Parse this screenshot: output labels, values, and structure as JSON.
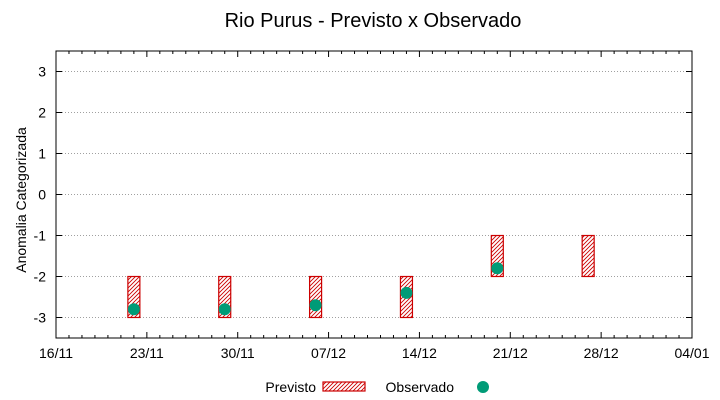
{
  "chart_data": {
    "type": "range-bar-scatter",
    "title": "Rio Purus - Previsto x Observado",
    "xlabel": "",
    "ylabel": "Anomalia Categorizada",
    "ylim": [
      -3.5,
      3.5
    ],
    "yticks": [
      3,
      2,
      1,
      0,
      -1,
      -2,
      -3
    ],
    "ytick_labels": [
      "3",
      "2",
      "1",
      "0",
      "-1",
      "-2",
      "-3"
    ],
    "xlim": [
      "2020-11-16",
      "2021-01-04"
    ],
    "xtick_labels": [
      "16/11",
      "23/11",
      "30/11",
      "07/12",
      "14/12",
      "21/12",
      "28/12",
      "04/01"
    ],
    "grid": "horizontal-dotted",
    "legend_position": "bottom",
    "series": [
      {
        "name": "Previsto",
        "style": "hatched-range-bar",
        "color": "#cc0000",
        "points": [
          {
            "x": "2020-11-22",
            "low": -3,
            "high": -2
          },
          {
            "x": "2020-11-29",
            "low": -3,
            "high": -2
          },
          {
            "x": "2020-12-06",
            "low": -3,
            "high": -2
          },
          {
            "x": "2020-12-13",
            "low": -3,
            "high": -2
          },
          {
            "x": "2020-12-20",
            "low": -2,
            "high": -1
          },
          {
            "x": "2020-12-27",
            "low": -2,
            "high": -1
          }
        ]
      },
      {
        "name": "Observado",
        "style": "point",
        "color": "#009b77",
        "points": [
          {
            "x": "2020-11-22",
            "y": -2.8
          },
          {
            "x": "2020-11-29",
            "y": -2.8
          },
          {
            "x": "2020-12-06",
            "y": -2.7
          },
          {
            "x": "2020-12-13",
            "y": -2.4
          },
          {
            "x": "2020-12-20",
            "y": -1.8
          }
        ]
      }
    ]
  }
}
